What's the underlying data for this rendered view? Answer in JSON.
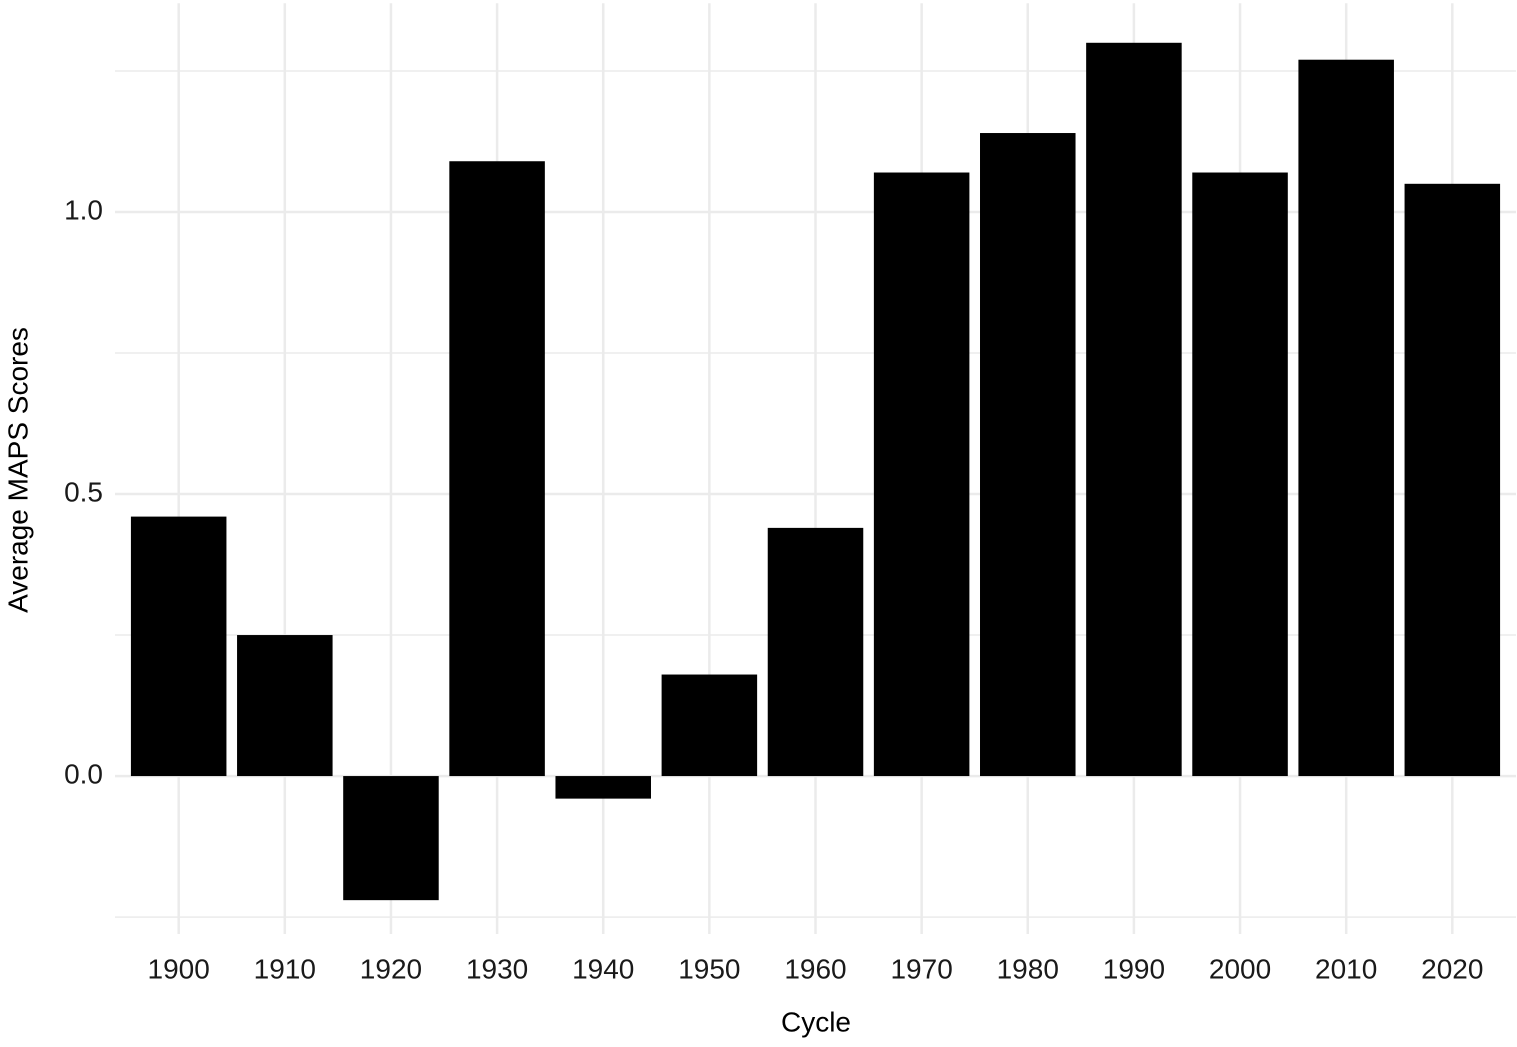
{
  "chart_data": {
    "type": "bar",
    "x_label": "Cycle",
    "y_label": "Average MAPS Scores",
    "categories": [
      "1900",
      "1910",
      "1920",
      "1930",
      "1940",
      "1950",
      "1960",
      "1970",
      "1980",
      "1990",
      "2000",
      "2010",
      "2020"
    ],
    "values": [
      0.46,
      0.25,
      -0.22,
      1.09,
      -0.04,
      0.18,
      0.44,
      1.07,
      1.14,
      1.3,
      1.07,
      1.27,
      1.05
    ],
    "color": "#000000",
    "ylim": [
      -0.28,
      1.37
    ],
    "yticks": [
      {
        "value": 0,
        "label": "0.0"
      },
      {
        "value": 0.5,
        "label": "0.5"
      },
      {
        "value": 1,
        "label": "1.0"
      }
    ],
    "yminor": [
      -0.25,
      0.25,
      0.75,
      1.25
    ],
    "grid": true
  }
}
